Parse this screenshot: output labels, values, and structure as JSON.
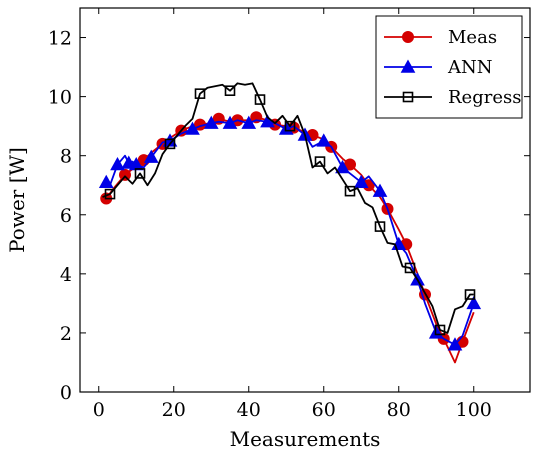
{
  "chart_data": {
    "type": "line",
    "title": "",
    "xlabel": "Measurements",
    "ylabel": "Power [W]",
    "xlim": [
      -5,
      115
    ],
    "ylim": [
      0,
      13
    ],
    "xticks": [
      0,
      20,
      40,
      60,
      80,
      100
    ],
    "yticks": [
      0,
      2,
      4,
      6,
      8,
      10,
      12
    ],
    "legend_position": "top-right",
    "grid": false,
    "series": [
      {
        "name": "Meas",
        "color": "#d40000",
        "marker": "circle",
        "x": [
          1,
          2,
          4,
          7,
          9,
          12,
          14,
          17,
          19,
          22,
          25,
          27,
          30,
          32,
          35,
          37,
          40,
          42,
          45,
          47,
          50,
          52,
          55,
          57,
          60,
          62,
          65,
          67,
          70,
          72,
          75,
          77,
          80,
          82,
          85,
          87,
          90,
          92,
          95,
          97,
          100
        ],
        "y": [
          6.5,
          6.55,
          6.9,
          7.35,
          7.55,
          7.85,
          8.1,
          8.4,
          8.6,
          8.85,
          9.0,
          9.05,
          9.1,
          9.25,
          9.15,
          9.2,
          9.2,
          9.3,
          9.2,
          9.05,
          9.0,
          8.95,
          8.8,
          8.7,
          8.55,
          8.3,
          7.9,
          7.7,
          7.35,
          7.0,
          6.6,
          6.2,
          5.5,
          5.0,
          4.0,
          3.3,
          2.3,
          1.8,
          1.0,
          1.7,
          2.7
        ]
      },
      {
        "name": "ANN",
        "color": "#0000e6",
        "marker": "triangle",
        "x": [
          1,
          2,
          3,
          5,
          7,
          8,
          9,
          10,
          12,
          14,
          17,
          19,
          22,
          25,
          27,
          30,
          32,
          35,
          37,
          40,
          42,
          45,
          47,
          50,
          52,
          55,
          57,
          60,
          62,
          65,
          67,
          70,
          72,
          75,
          77,
          80,
          82,
          85,
          87,
          90,
          92,
          95,
          97,
          100
        ],
        "y": [
          7.05,
          7.1,
          7.0,
          7.7,
          8.0,
          7.75,
          7.8,
          7.7,
          7.6,
          7.95,
          8.45,
          8.5,
          8.75,
          8.9,
          9.0,
          9.1,
          9.15,
          9.1,
          9.2,
          9.1,
          9.2,
          9.15,
          9.1,
          8.9,
          9.0,
          8.7,
          8.3,
          8.5,
          8.3,
          7.6,
          7.4,
          7.1,
          7.3,
          6.8,
          6.2,
          5.0,
          4.7,
          3.8,
          3.0,
          2.0,
          1.8,
          1.6,
          1.9,
          3.0
        ]
      },
      {
        "name": "Regress",
        "color": "#000000",
        "marker": "square",
        "x": [
          1,
          3,
          5,
          7,
          9,
          11,
          13,
          15,
          17,
          19,
          21,
          23,
          25,
          27,
          29,
          31,
          33,
          35,
          37,
          39,
          41,
          43,
          45,
          47,
          49,
          51,
          53,
          55,
          57,
          59,
          61,
          63,
          65,
          67,
          69,
          71,
          73,
          75,
          77,
          79,
          81,
          83,
          85,
          87,
          89,
          91,
          93,
          95,
          97,
          99,
          100
        ],
        "y": [
          6.6,
          6.7,
          7.0,
          7.3,
          7.05,
          7.4,
          7.0,
          7.4,
          8.05,
          8.4,
          8.7,
          9.0,
          9.25,
          10.1,
          10.3,
          10.35,
          10.4,
          10.2,
          10.45,
          10.4,
          10.45,
          9.9,
          9.3,
          9.1,
          9.35,
          9.0,
          9.35,
          8.7,
          7.6,
          7.8,
          7.4,
          7.6,
          7.2,
          6.8,
          6.9,
          6.4,
          6.25,
          5.6,
          5.05,
          5.0,
          4.25,
          4.2,
          3.8,
          3.35,
          2.9,
          2.1,
          2.0,
          2.8,
          2.9,
          3.3,
          3.3
        ]
      }
    ]
  }
}
